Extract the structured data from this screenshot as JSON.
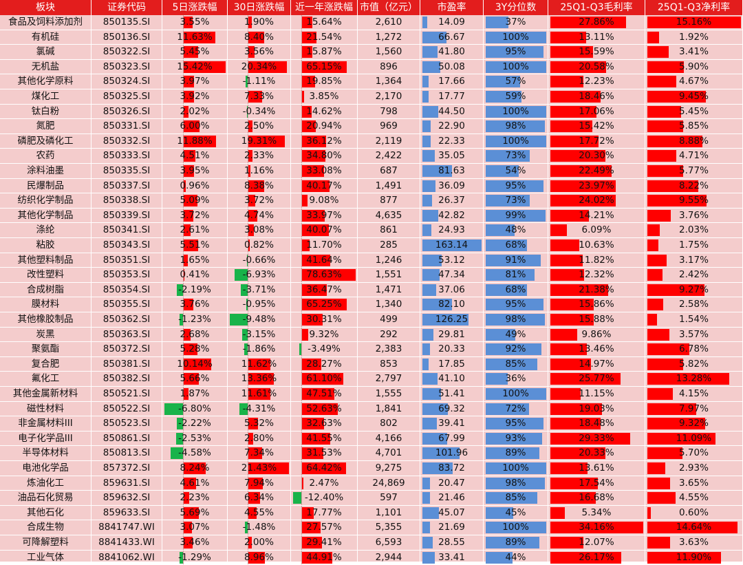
{
  "chart_data": {
    "type": "table",
    "columns": [
      "板块",
      "证券代码",
      "5日涨跌幅",
      "30日涨跌幅",
      "近一年涨跌幅",
      "市值（亿元）",
      "市盈率",
      "3Y分位数",
      "25Q1-Q3毛利率",
      "25Q1-Q3净利率"
    ],
    "colors": {
      "header": "#e31d1d",
      "background": "#f4cccc",
      "positive": "#ff0000",
      "negative": "#19b34a",
      "neutral": "#5b8fd6"
    },
    "rows": [
      {
        "name": "食品及饲料添加剂",
        "code": "850135.SI",
        "d5": "3.55%",
        "d30": "1.90%",
        "y1": "15.64%",
        "mcap": "2,610",
        "pe": "14.09",
        "pct3y": "37%",
        "gm": "27.86%",
        "nm": "15.16%"
      },
      {
        "name": "有机硅",
        "code": "850136.SI",
        "d5": "11.63%",
        "d30": "8.40%",
        "y1": "21.54%",
        "mcap": "1,272",
        "pe": "66.67",
        "pct3y": "100%",
        "gm": "13.11%",
        "nm": "1.92%"
      },
      {
        "name": "氯碱",
        "code": "850322.SI",
        "d5": "5.45%",
        "d30": "3.56%",
        "y1": "15.87%",
        "mcap": "1,560",
        "pe": "41.80",
        "pct3y": "95%",
        "gm": "15.59%",
        "nm": "3.41%"
      },
      {
        "name": "无机盐",
        "code": "850323.SI",
        "d5": "15.42%",
        "d30": "20.34%",
        "y1": "65.15%",
        "mcap": "896",
        "pe": "50.08",
        "pct3y": "100%",
        "gm": "20.58%",
        "nm": "5.90%"
      },
      {
        "name": "其他化学原料",
        "code": "850324.SI",
        "d5": "3.97%",
        "d30": "-1.11%",
        "y1": "19.85%",
        "mcap": "1,364",
        "pe": "17.66",
        "pct3y": "57%",
        "gm": "12.23%",
        "nm": "4.67%"
      },
      {
        "name": "煤化工",
        "code": "850325.SI",
        "d5": "3.92%",
        "d30": "7.33%",
        "y1": "3.85%",
        "mcap": "2,170",
        "pe": "17.77",
        "pct3y": "59%",
        "gm": "18.46%",
        "nm": "9.45%"
      },
      {
        "name": "钛白粉",
        "code": "850326.SI",
        "d5": "2.02%",
        "d30": "-0.34%",
        "y1": "14.62%",
        "mcap": "798",
        "pe": "44.50",
        "pct3y": "100%",
        "gm": "17.06%",
        "nm": "5.45%"
      },
      {
        "name": "氮肥",
        "code": "850331.SI",
        "d5": "6.00%",
        "d30": "2.50%",
        "y1": "20.94%",
        "mcap": "969",
        "pe": "22.90",
        "pct3y": "98%",
        "gm": "15.42%",
        "nm": "5.85%"
      },
      {
        "name": "磷肥及磷化工",
        "code": "850332.SI",
        "d5": "11.88%",
        "d30": "19.31%",
        "y1": "36.12%",
        "mcap": "2,119",
        "pe": "22.33",
        "pct3y": "100%",
        "gm": "17.72%",
        "nm": "8.88%"
      },
      {
        "name": "农药",
        "code": "850333.SI",
        "d5": "4.51%",
        "d30": "2.33%",
        "y1": "34.80%",
        "mcap": "2,422",
        "pe": "35.05",
        "pct3y": "73%",
        "gm": "20.30%",
        "nm": "4.71%"
      },
      {
        "name": "涂料油墨",
        "code": "850335.SI",
        "d5": "3.95%",
        "d30": "1.16%",
        "y1": "33.08%",
        "mcap": "687",
        "pe": "81.63",
        "pct3y": "54%",
        "gm": "22.49%",
        "nm": "5.77%"
      },
      {
        "name": "民爆制品",
        "code": "850337.SI",
        "d5": "0.96%",
        "d30": "8.38%",
        "y1": "40.17%",
        "mcap": "1,491",
        "pe": "36.09",
        "pct3y": "95%",
        "gm": "23.97%",
        "nm": "8.22%"
      },
      {
        "name": "纺织化学制品",
        "code": "850338.SI",
        "d5": "5.09%",
        "d30": "3.72%",
        "y1": "9.08%",
        "mcap": "877",
        "pe": "26.37",
        "pct3y": "73%",
        "gm": "24.02%",
        "nm": "9.55%"
      },
      {
        "name": "其他化学制品",
        "code": "850339.SI",
        "d5": "3.72%",
        "d30": "4.74%",
        "y1": "33.97%",
        "mcap": "4,635",
        "pe": "42.82",
        "pct3y": "99%",
        "gm": "14.21%",
        "nm": "3.76%"
      },
      {
        "name": "涤纶",
        "code": "850341.SI",
        "d5": "2.61%",
        "d30": "3.08%",
        "y1": "40.07%",
        "mcap": "861",
        "pe": "24.93",
        "pct3y": "48%",
        "gm": "6.09%",
        "nm": "2.03%"
      },
      {
        "name": "粘胶",
        "code": "850343.SI",
        "d5": "5.51%",
        "d30": "0.82%",
        "y1": "11.70%",
        "mcap": "285",
        "pe": "163.14",
        "pct3y": "68%",
        "gm": "10.63%",
        "nm": "1.75%"
      },
      {
        "name": "其他塑料制品",
        "code": "850351.SI",
        "d5": "1.65%",
        "d30": "-0.66%",
        "y1": "41.64%",
        "mcap": "1,246",
        "pe": "53.12",
        "pct3y": "91%",
        "gm": "11.82%",
        "nm": "3.17%"
      },
      {
        "name": "改性塑料",
        "code": "850353.SI",
        "d5": "0.41%",
        "d30": "-6.93%",
        "y1": "78.63%",
        "mcap": "1,551",
        "pe": "47.34",
        "pct3y": "81%",
        "gm": "12.32%",
        "nm": "2.42%"
      },
      {
        "name": "合成树脂",
        "code": "850354.SI",
        "d5": "-2.19%",
        "d30": "-3.71%",
        "y1": "36.47%",
        "mcap": "1,471",
        "pe": "37.06",
        "pct3y": "68%",
        "gm": "21.38%",
        "nm": "9.27%"
      },
      {
        "name": "膜材料",
        "code": "850355.SI",
        "d5": "3.76%",
        "d30": "-0.95%",
        "y1": "65.25%",
        "mcap": "1,340",
        "pe": "82.10",
        "pct3y": "95%",
        "gm": "15.86%",
        "nm": "2.58%"
      },
      {
        "name": "其他橡胶制品",
        "code": "850362.SI",
        "d5": "-1.23%",
        "d30": "-9.48%",
        "y1": "30.31%",
        "mcap": "499",
        "pe": "126.25",
        "pct3y": "98%",
        "gm": "15.88%",
        "nm": "1.54%"
      },
      {
        "name": "炭黑",
        "code": "850363.SI",
        "d5": "2.68%",
        "d30": "-3.15%",
        "y1": "9.32%",
        "mcap": "292",
        "pe": "29.81",
        "pct3y": "49%",
        "gm": "9.86%",
        "nm": "3.57%"
      },
      {
        "name": "聚氨酯",
        "code": "850372.SI",
        "d5": "5.28%",
        "d30": "-1.86%",
        "y1": "-3.49%",
        "mcap": "2,383",
        "pe": "20.33",
        "pct3y": "92%",
        "gm": "13.46%",
        "nm": "6.78%"
      },
      {
        "name": "复合肥",
        "code": "850381.SI",
        "d5": "10.14%",
        "d30": "11.62%",
        "y1": "28.27%",
        "mcap": "853",
        "pe": "17.85",
        "pct3y": "85%",
        "gm": "14.97%",
        "nm": "5.82%"
      },
      {
        "name": "氟化工",
        "code": "850382.SI",
        "d5": "5.66%",
        "d30": "13.36%",
        "y1": "61.10%",
        "mcap": "2,797",
        "pe": "41.10",
        "pct3y": "36%",
        "gm": "25.77%",
        "nm": "13.28%"
      },
      {
        "name": "其他金属新材料",
        "code": "850521.SI",
        "d5": "1.87%",
        "d30": "11.61%",
        "y1": "47.51%",
        "mcap": "1,555",
        "pe": "51.41",
        "pct3y": "100%",
        "gm": "11.15%",
        "nm": "4.15%"
      },
      {
        "name": "磁性材料",
        "code": "850522.SI",
        "d5": "-6.80%",
        "d30": "-4.31%",
        "y1": "52.63%",
        "mcap": "1,841",
        "pe": "69.32",
        "pct3y": "72%",
        "gm": "19.03%",
        "nm": "7.97%"
      },
      {
        "name": "非金属材料III",
        "code": "850523.SI",
        "d5": "-2.22%",
        "d30": "5.32%",
        "y1": "32.63%",
        "mcap": "802",
        "pe": "39.41",
        "pct3y": "95%",
        "gm": "18.48%",
        "nm": "9.32%"
      },
      {
        "name": "电子化学品III",
        "code": "850861.SI",
        "d5": "-2.53%",
        "d30": "2.80%",
        "y1": "41.55%",
        "mcap": "4,166",
        "pe": "67.99",
        "pct3y": "93%",
        "gm": "29.33%",
        "nm": "11.09%"
      },
      {
        "name": "半导体材料",
        "code": "850813.SI",
        "d5": "-4.58%",
        "d30": "7.34%",
        "y1": "31.53%",
        "mcap": "4,701",
        "pe": "101.96",
        "pct3y": "89%",
        "gm": "20.33%",
        "nm": "5.70%"
      },
      {
        "name": "电池化学品",
        "code": "857372.SI",
        "d5": "8.24%",
        "d30": "21.43%",
        "y1": "64.42%",
        "mcap": "9,275",
        "pe": "83.72",
        "pct3y": "100%",
        "gm": "13.61%",
        "nm": "2.93%"
      },
      {
        "name": "炼油化工",
        "code": "859631.SI",
        "d5": "4.61%",
        "d30": "7.94%",
        "y1": "2.47%",
        "mcap": "24,869",
        "pe": "20.47",
        "pct3y": "98%",
        "gm": "17.54%",
        "nm": "3.65%"
      },
      {
        "name": "油品石化贸易",
        "code": "859632.SI",
        "d5": "2.23%",
        "d30": "6.34%",
        "y1": "-12.40%",
        "mcap": "597",
        "pe": "21.46",
        "pct3y": "85%",
        "gm": "16.68%",
        "nm": "4.55%"
      },
      {
        "name": "其他石化",
        "code": "859633.SI",
        "d5": "5.69%",
        "d30": "4.55%",
        "y1": "17.77%",
        "mcap": "1,101",
        "pe": "45.07",
        "pct3y": "45%",
        "gm": "5.34%",
        "nm": "0.60%"
      },
      {
        "name": "合成生物",
        "code": "8841747.WI",
        "d5": "3.07%",
        "d30": "-1.48%",
        "y1": "27.57%",
        "mcap": "5,355",
        "pe": "21.69",
        "pct3y": "100%",
        "gm": "34.16%",
        "nm": "14.64%"
      },
      {
        "name": "可降解塑料",
        "code": "8841433.WI",
        "d5": "3.46%",
        "d30": "2.00%",
        "y1": "29.41%",
        "mcap": "6,593",
        "pe": "28.55",
        "pct3y": "89%",
        "gm": "12.07%",
        "nm": "3.63%"
      },
      {
        "name": "工业气体",
        "code": "8841062.WI",
        "d5": "-1.29%",
        "d30": "8.96%",
        "y1": "44.91%",
        "mcap": "2,944",
        "pe": "33.41",
        "pct3y": "44%",
        "gm": "26.17%",
        "nm": "11.90%"
      }
    ]
  }
}
